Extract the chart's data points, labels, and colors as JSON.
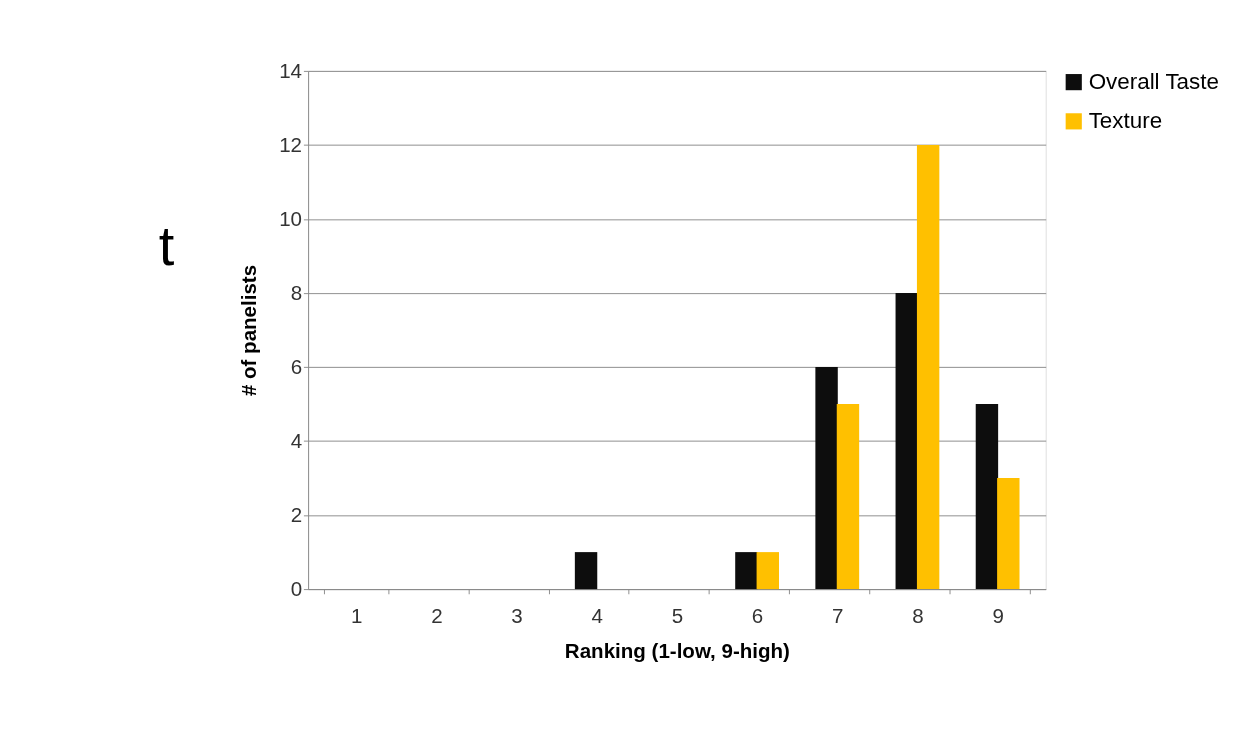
{
  "chart_data": {
    "type": "bar",
    "xlabel": "Ranking (1-low, 9-high)",
    "ylabel": "# of panelists",
    "categories": [
      "1",
      "2",
      "3",
      "4",
      "5",
      "6",
      "7",
      "8",
      "9"
    ],
    "series": [
      {
        "name": "Overall Taste",
        "color": "#0d0d0d",
        "values": [
          0,
          0,
          0,
          1,
          0,
          1,
          6,
          8,
          5
        ]
      },
      {
        "name": "Texture",
        "color": "#ffc000",
        "values": [
          0,
          0,
          0,
          0,
          0,
          1,
          5,
          12,
          3
        ]
      }
    ],
    "ylim": [
      0,
      14
    ],
    "yticks": [
      0,
      2,
      4,
      6,
      8,
      10,
      12,
      14
    ],
    "grid": "y",
    "legend": "right",
    "annotations": [
      "t"
    ]
  }
}
